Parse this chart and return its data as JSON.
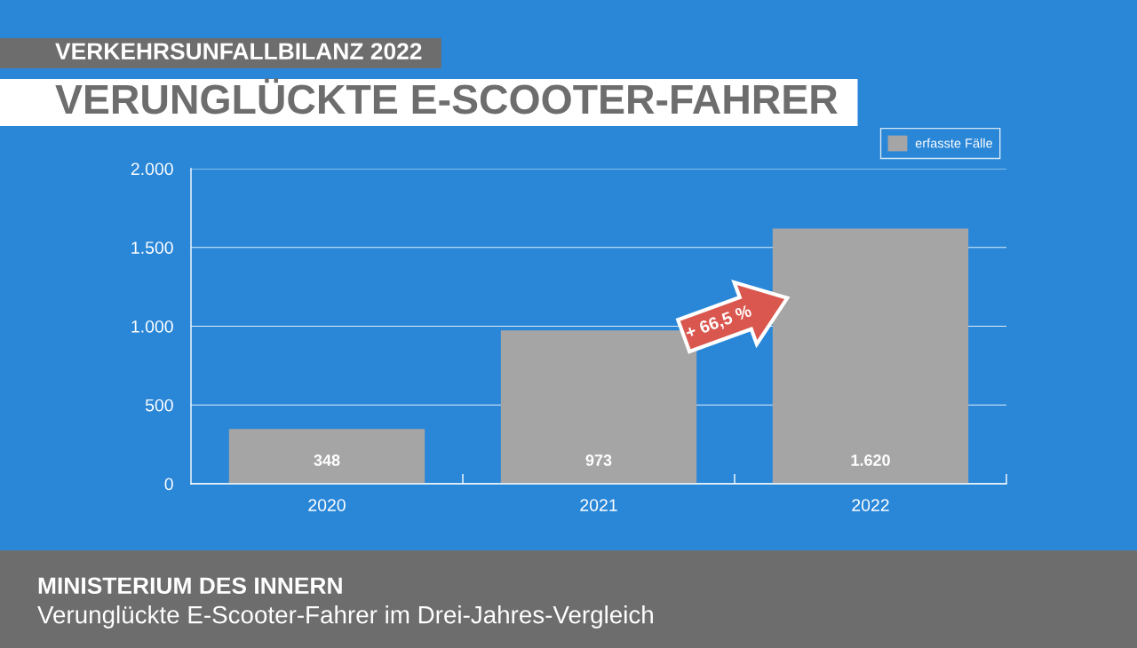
{
  "chart_data": {
    "type": "bar",
    "title": "VERUNGLÜCKTE E-SCOOTER-FAHRER",
    "subtitle": "VERKEHRSUNFALLBILANZ 2022",
    "categories": [
      "2020",
      "2021",
      "2022"
    ],
    "series": [
      {
        "name": "erfasste Fälle",
        "color": "#a5a5a5",
        "values": [
          348,
          973,
          1620
        ],
        "value_labels": [
          "348",
          "973",
          "1.620"
        ]
      }
    ],
    "ylim": [
      0,
      2000
    ],
    "yticks": [
      0,
      500,
      {
        "value": 1000,
        "label": "1.000"
      },
      {
        "value": 1500,
        "label": "1.500"
      },
      {
        "value": 2000,
        "label": "2.000"
      }
    ],
    "grid": "y",
    "legend": "top right",
    "annotations": [
      "+ 66,5 %",
      "MINISTERIUM DES INNERN",
      "Verunglückte E-Scooter-Fahrer im Drei-Jahres-Vergleich"
    ]
  }
}
